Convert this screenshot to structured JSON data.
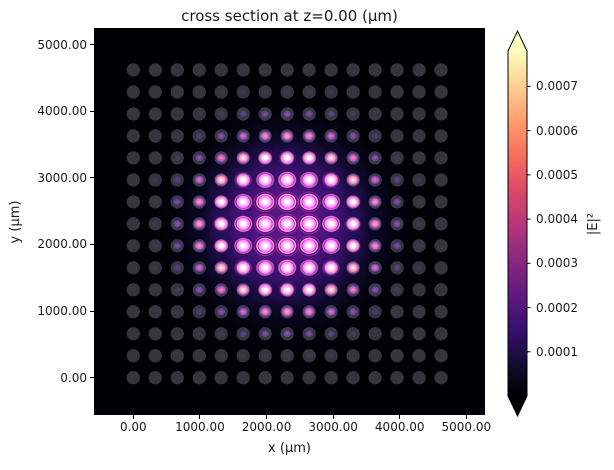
{
  "chart_data": {
    "type": "heatmap",
    "title": "cross section at z=0.00 (μm)",
    "xlabel": "x (μm)",
    "ylabel": "y (μm)",
    "xlim": [
      -590,
      5280
    ],
    "ylim": [
      -560,
      5250
    ],
    "grid": false,
    "plot_bg": "#000004",
    "xticks": {
      "values": [
        0,
        1000,
        2000,
        3000,
        4000,
        5000
      ],
      "labels": [
        "0.00",
        "1000.00",
        "2000.00",
        "3000.00",
        "4000.00",
        "5000.00"
      ]
    },
    "yticks": {
      "values": [
        0,
        1000,
        2000,
        3000,
        4000,
        5000
      ],
      "labels": [
        "0.00",
        "1000.00",
        "2000.00",
        "3000.00",
        "4000.00",
        "5000.00"
      ]
    },
    "waveguide_array": {
      "nx": 15,
      "ny": 15,
      "pitch_um": 330,
      "x_start_um": 0,
      "y_start_um": 0,
      "circle_radius_um": 100,
      "circle_color": "#35353d"
    },
    "intensity": {
      "unit": "|E|²",
      "scale": 0.0001,
      "note": "per-waveguide peak |E|^2, rows listed top (y=4620um) to bottom (y=0um), values x scale",
      "values": [
        [
          0.008,
          0.022,
          0.054,
          0.11,
          0.19,
          0.29,
          0.37,
          0.4,
          0.37,
          0.29,
          0.19,
          0.11,
          0.054,
          0.022,
          0.008
        ],
        [
          0.022,
          0.063,
          0.15,
          0.31,
          0.55,
          0.82,
          1.04,
          1.12,
          1.04,
          0.82,
          0.55,
          0.31,
          0.15,
          0.063,
          0.022
        ],
        [
          0.054,
          0.15,
          0.37,
          0.75,
          1.32,
          1.97,
          2.5,
          2.71,
          2.5,
          1.97,
          1.32,
          0.75,
          0.37,
          0.15,
          0.054
        ],
        [
          0.11,
          0.31,
          0.75,
          1.54,
          2.71,
          4.04,
          5.13,
          5.56,
          5.13,
          4.04,
          2.71,
          1.54,
          0.75,
          0.31,
          0.11
        ],
        [
          0.19,
          0.55,
          1.32,
          2.71,
          4.74,
          7.07,
          8.99,
          9.73,
          8.99,
          7.07,
          4.74,
          2.71,
          1.32,
          0.55,
          0.19
        ],
        [
          0.29,
          0.82,
          1.97,
          4.04,
          7.07,
          10.5,
          13.4,
          14.5,
          13.4,
          10.5,
          7.07,
          4.04,
          1.97,
          0.82,
          0.29
        ],
        [
          0.37,
          1.04,
          2.5,
          5.13,
          8.99,
          13.4,
          17.1,
          18.5,
          17.1,
          13.4,
          8.99,
          5.13,
          2.5,
          1.04,
          0.37
        ],
        [
          0.4,
          1.12,
          2.71,
          5.56,
          9.73,
          14.5,
          18.5,
          20.0,
          18.5,
          14.5,
          9.73,
          5.56,
          2.71,
          1.12,
          0.4
        ],
        [
          0.37,
          1.04,
          2.5,
          5.13,
          8.99,
          13.4,
          17.1,
          18.5,
          17.1,
          13.4,
          8.99,
          5.13,
          2.5,
          1.04,
          0.37
        ],
        [
          0.29,
          0.82,
          1.97,
          4.04,
          7.07,
          10.5,
          13.4,
          14.5,
          13.4,
          10.5,
          7.07,
          4.04,
          1.97,
          0.82,
          0.29
        ],
        [
          0.19,
          0.55,
          1.32,
          2.71,
          4.74,
          7.07,
          8.99,
          9.73,
          8.99,
          7.07,
          4.74,
          2.71,
          1.32,
          0.55,
          0.19
        ],
        [
          0.11,
          0.31,
          0.75,
          1.54,
          2.71,
          4.04,
          5.13,
          5.56,
          5.13,
          4.04,
          2.71,
          1.54,
          0.75,
          0.31,
          0.11
        ],
        [
          0.054,
          0.15,
          0.37,
          0.75,
          1.32,
          1.97,
          2.5,
          2.71,
          2.5,
          1.97,
          1.32,
          0.75,
          0.37,
          0.15,
          0.054
        ],
        [
          0.022,
          0.063,
          0.15,
          0.31,
          0.55,
          0.82,
          1.04,
          1.12,
          1.04,
          0.82,
          0.55,
          0.31,
          0.15,
          0.063,
          0.022
        ],
        [
          0.008,
          0.022,
          0.054,
          0.11,
          0.19,
          0.29,
          0.37,
          0.4,
          0.37,
          0.29,
          0.19,
          0.11,
          0.054,
          0.022,
          0.008
        ]
      ]
    },
    "colorbar": {
      "label": "|E|²",
      "vmin": 0,
      "vmax": 0.00078,
      "extend": "both",
      "colormap": "magma",
      "colormap_anchors": [
        [
          0.0,
          "#000004"
        ],
        [
          0.1,
          "#140e36"
        ],
        [
          0.2,
          "#3b0f70"
        ],
        [
          0.3,
          "#641a80"
        ],
        [
          0.4,
          "#8c2981"
        ],
        [
          0.5,
          "#b73779"
        ],
        [
          0.6,
          "#de4968"
        ],
        [
          0.7,
          "#f7705c"
        ],
        [
          0.8,
          "#fe9f6d"
        ],
        [
          0.9,
          "#fecf92"
        ],
        [
          1.0,
          "#fcfdbf"
        ]
      ],
      "ticks": {
        "values": [
          0.0001,
          0.0002,
          0.0003,
          0.0004,
          0.0005,
          0.0006,
          0.0007
        ],
        "labels": [
          "0.0001",
          "0.0002",
          "0.0003",
          "0.0004",
          "0.0005",
          "0.0006",
          "0.0007"
        ]
      }
    }
  }
}
